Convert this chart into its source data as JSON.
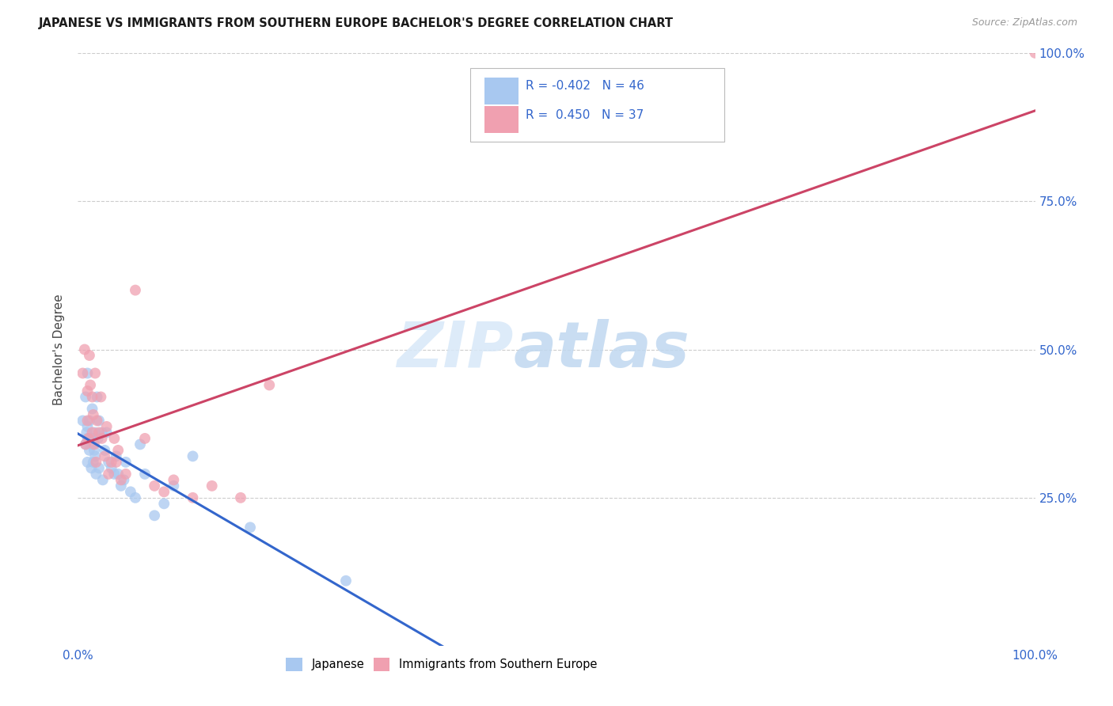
{
  "title": "JAPANESE VS IMMIGRANTS FROM SOUTHERN EUROPE BACHELOR'S DEGREE CORRELATION CHART",
  "source": "Source: ZipAtlas.com",
  "ylabel": "Bachelor's Degree",
  "xlim": [
    0,
    1.0
  ],
  "ylim": [
    0,
    1.0
  ],
  "legend_R": [
    -0.402,
    0.45
  ],
  "legend_N": [
    46,
    37
  ],
  "blue_color": "#A8C8F0",
  "pink_color": "#F0A0B0",
  "blue_line_color": "#3366CC",
  "pink_line_color": "#CC4466",
  "watermark_zip": "ZIP",
  "watermark_atlas": "atlas",
  "background_color": "#FFFFFF",
  "grid_color": "#CCCCCC",
  "japanese_x": [
    0.005,
    0.008,
    0.008,
    0.009,
    0.01,
    0.01,
    0.01,
    0.01,
    0.012,
    0.012,
    0.013,
    0.014,
    0.015,
    0.015,
    0.016,
    0.016,
    0.017,
    0.018,
    0.018,
    0.019,
    0.02,
    0.021,
    0.022,
    0.022,
    0.025,
    0.026,
    0.028,
    0.03,
    0.032,
    0.035,
    0.038,
    0.04,
    0.042,
    0.045,
    0.048,
    0.05,
    0.055,
    0.06,
    0.065,
    0.07,
    0.08,
    0.09,
    0.1,
    0.12,
    0.18,
    0.28
  ],
  "japanese_y": [
    0.38,
    0.34,
    0.42,
    0.36,
    0.35,
    0.37,
    0.31,
    0.46,
    0.38,
    0.33,
    0.35,
    0.3,
    0.34,
    0.4,
    0.35,
    0.31,
    0.33,
    0.32,
    0.36,
    0.29,
    0.42,
    0.35,
    0.38,
    0.3,
    0.36,
    0.28,
    0.33,
    0.36,
    0.31,
    0.3,
    0.29,
    0.32,
    0.29,
    0.27,
    0.28,
    0.31,
    0.26,
    0.25,
    0.34,
    0.29,
    0.22,
    0.24,
    0.27,
    0.32,
    0.2,
    0.11
  ],
  "southern_eu_x": [
    0.005,
    0.007,
    0.008,
    0.01,
    0.01,
    0.011,
    0.012,
    0.013,
    0.015,
    0.015,
    0.016,
    0.017,
    0.018,
    0.019,
    0.02,
    0.022,
    0.024,
    0.025,
    0.028,
    0.03,
    0.032,
    0.035,
    0.038,
    0.04,
    0.042,
    0.045,
    0.05,
    0.06,
    0.07,
    0.08,
    0.09,
    0.1,
    0.12,
    0.14,
    0.17,
    0.2,
    1.0
  ],
  "southern_eu_y": [
    0.46,
    0.5,
    0.34,
    0.38,
    0.43,
    0.35,
    0.49,
    0.44,
    0.36,
    0.42,
    0.39,
    0.34,
    0.46,
    0.31,
    0.38,
    0.36,
    0.42,
    0.35,
    0.32,
    0.37,
    0.29,
    0.31,
    0.35,
    0.31,
    0.33,
    0.28,
    0.29,
    0.6,
    0.35,
    0.27,
    0.26,
    0.28,
    0.25,
    0.27,
    0.25,
    0.44,
    1.0
  ]
}
